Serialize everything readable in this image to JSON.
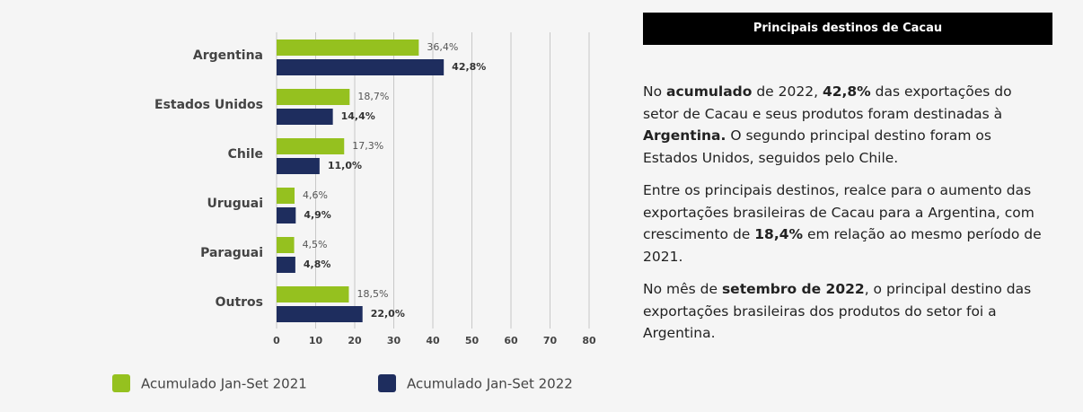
{
  "chart_data": {
    "type": "hbar",
    "categories": [
      "Argentina",
      "Estados Unidos",
      "Chile",
      "Uruguai",
      "Paraguai",
      "Outros"
    ],
    "series": [
      {
        "name": "Acumulado Jan-Set 2021",
        "color": "#95c11f",
        "values": [
          36.4,
          18.7,
          17.3,
          4.6,
          4.5,
          18.5
        ],
        "value_labels": [
          "36,4%",
          "18,7%",
          "17,3%",
          "4,6%",
          "4,5%",
          "18,5%"
        ]
      },
      {
        "name": "Acumulado Jan-Set 2022",
        "color": "#1e2d5e",
        "values": [
          42.8,
          14.4,
          11.0,
          4.9,
          4.8,
          22.0
        ],
        "value_labels": [
          "42,8%",
          "14,4%",
          "11,0%",
          "4,9%",
          "4,8%",
          "22,0%"
        ]
      }
    ],
    "xlim": [
      0,
      80
    ],
    "xticks": [
      0,
      10,
      20,
      30,
      40,
      50,
      60,
      70,
      80
    ],
    "grid": true
  },
  "panel": {
    "title": "Principais destinos de Cacau",
    "paragraphs": [
      [
        {
          "text": "No "
        },
        {
          "text": "acumulado",
          "bold": true
        },
        {
          "text": " de 2022, "
        },
        {
          "text": "42,8%",
          "bold": true
        },
        {
          "text": " das exportações do setor de Cacau e seus produtos foram destinadas à "
        },
        {
          "text": "Argentina.",
          "bold": true
        },
        {
          "text": " O segundo principal destino foram os Estados Unidos, seguidos pelo Chile."
        }
      ],
      [
        {
          "text": "Entre os principais destinos, realce para o aumento das exportações brasileiras de Cacau para a Argentina, com crescimento de "
        },
        {
          "text": "18,4%",
          "bold": true
        },
        {
          "text": " em relação ao mesmo período de 2021."
        }
      ],
      [
        {
          "text": "No mês de "
        },
        {
          "text": "setembro de 2022",
          "bold": true
        },
        {
          "text": ", o principal destino das exportações brasileiras dos produtos do setor foi a Argentina."
        }
      ]
    ]
  }
}
